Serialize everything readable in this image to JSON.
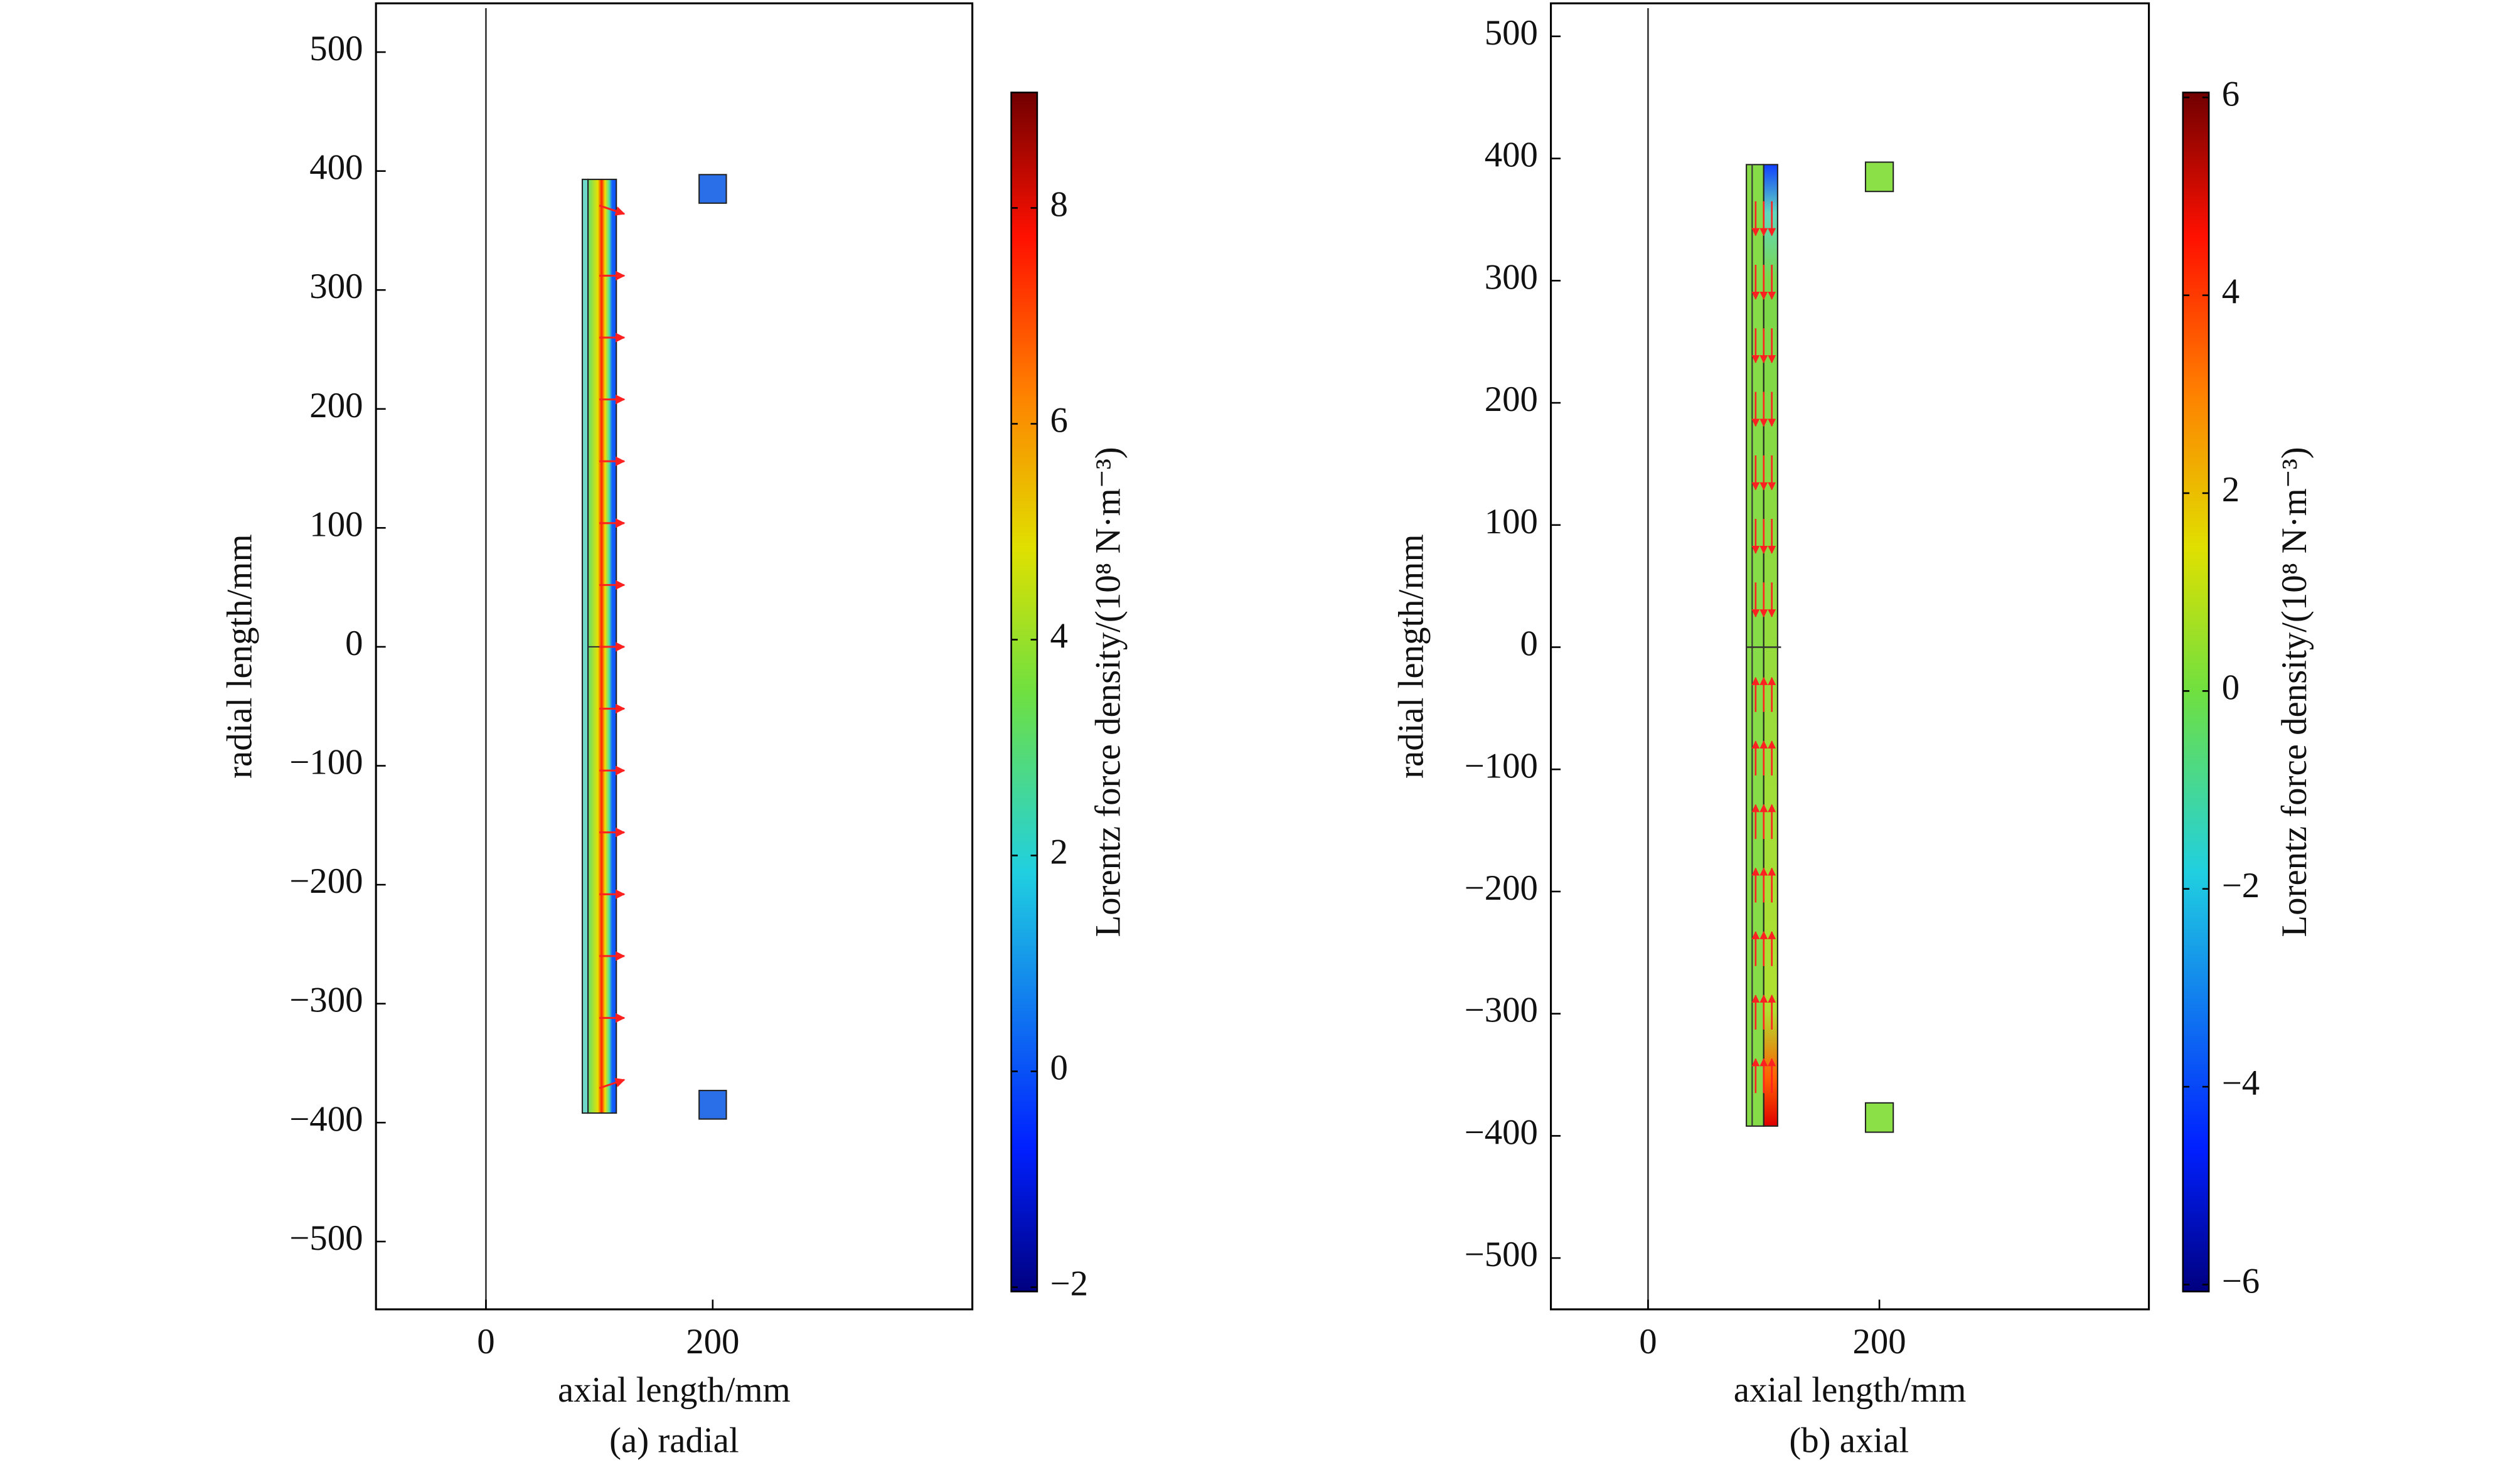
{
  "chart_data": [
    {
      "type": "field-map",
      "caption": "(a) radial",
      "x_label": "axial length/mm",
      "y_label": "radial length/mm",
      "xlim": [
        -97,
        429
      ],
      "ylim": [
        -557,
        541
      ],
      "xticks": [
        0,
        200
      ],
      "yticks": [
        {
          "value": -500,
          "label": "−500"
        },
        {
          "value": -400,
          "label": "−400"
        },
        {
          "value": -300,
          "label": "−300"
        },
        {
          "value": -200,
          "label": "−200"
        },
        {
          "value": -100,
          "label": "−100"
        },
        0,
        100,
        200,
        300,
        400,
        500
      ],
      "colorbar": {
        "label": "Lorentz force density/(10⁸ N·m⁻³)",
        "lim": [
          -2.04,
          9.07
        ],
        "ticks": [
          {
            "value": -2,
            "label": "−2"
          },
          0,
          2,
          4,
          6,
          8
        ]
      }
    },
    {
      "type": "field-map",
      "caption": "(b) axial",
      "x_label": "axial length/mm",
      "y_label": "radial length/mm",
      "xlim": [
        -84,
        433
      ],
      "ylim": [
        -542,
        527
      ],
      "xticks": [
        0,
        200
      ],
      "yticks": [
        {
          "value": -500,
          "label": "−500"
        },
        {
          "value": -400,
          "label": "−400"
        },
        {
          "value": -300,
          "label": "−300"
        },
        {
          "value": -200,
          "label": "−200"
        },
        {
          "value": -100,
          "label": "−100"
        },
        0,
        100,
        200,
        300,
        400,
        500
      ],
      "colorbar": {
        "label": "Lorentz force density/(10⁸ N·m⁻³)",
        "lim": [
          -6.07,
          6.05
        ],
        "ticks": [
          {
            "value": -6,
            "label": "−6"
          },
          {
            "value": -4,
            "label": "−4"
          },
          {
            "value": -2,
            "label": "−2"
          },
          0,
          2,
          4,
          6
        ]
      }
    }
  ]
}
